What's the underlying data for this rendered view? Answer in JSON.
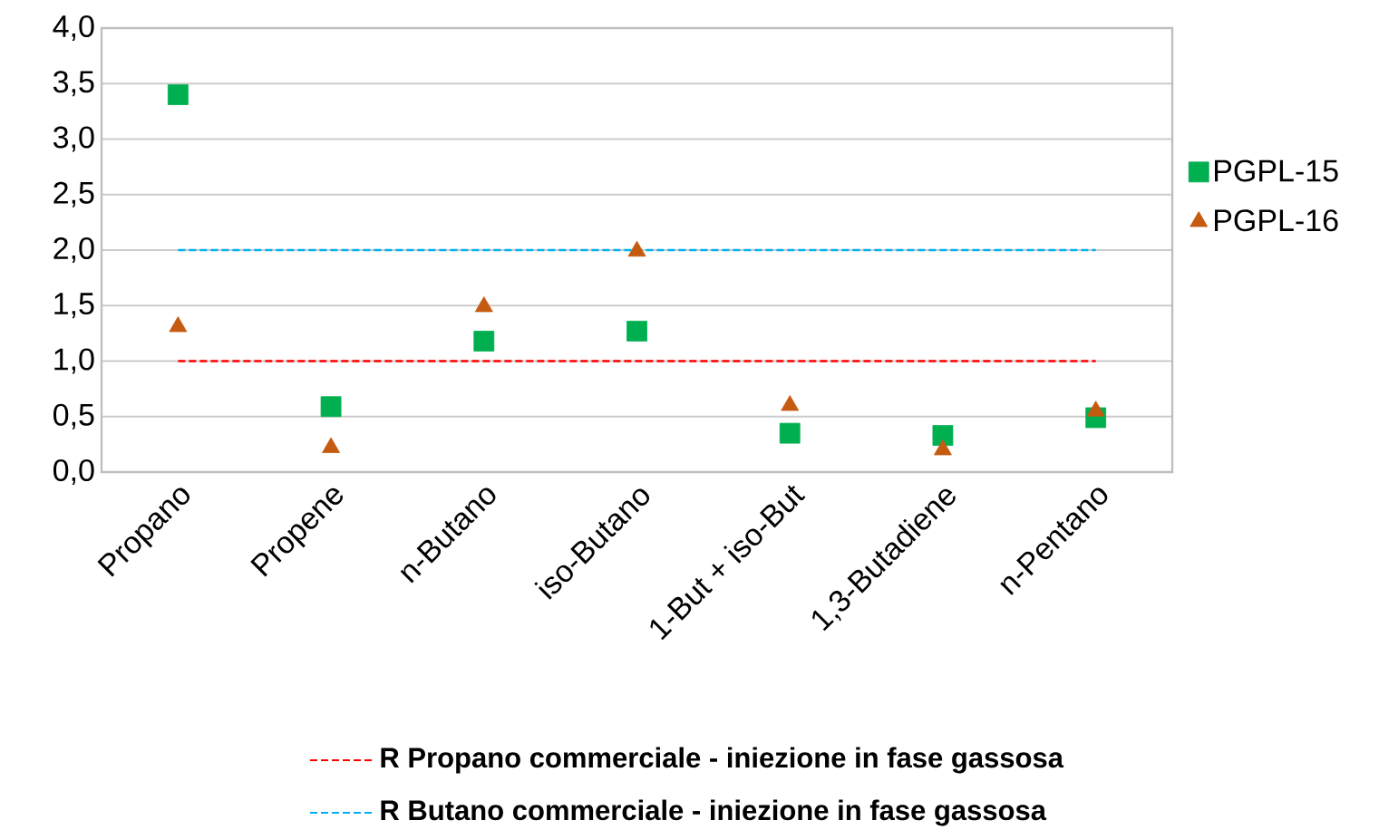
{
  "chart_data": {
    "type": "scatter",
    "categories": [
      "Propano",
      "Propene",
      "n-Butano",
      "iso-Butano",
      "1-But + iso-But",
      "1,3-Butadiene",
      "n-Pentano"
    ],
    "series": [
      {
        "name": "PGPL-15",
        "color": "#00b050",
        "marker": "square",
        "values": [
          3.4,
          0.59,
          1.18,
          1.27,
          0.35,
          0.33,
          0.49
        ]
      },
      {
        "name": "PGPL-16",
        "color": "#c55a11",
        "marker": "triangle",
        "values": [
          1.31,
          0.22,
          1.49,
          1.99,
          0.6,
          0.2,
          0.55
        ]
      }
    ],
    "ylim": [
      0,
      4
    ],
    "yticks": [
      {
        "value": 0,
        "label": "0,0"
      },
      {
        "value": 0.5,
        "label": "0,5"
      },
      {
        "value": 1,
        "label": "1,0"
      },
      {
        "value": 1.5,
        "label": "1,5"
      },
      {
        "value": 2,
        "label": "2,0"
      },
      {
        "value": 2.5,
        "label": "2,5"
      },
      {
        "value": 3,
        "label": "3,0"
      },
      {
        "value": 3.5,
        "label": "3,5"
      },
      {
        "value": 4,
        "label": "4,0"
      }
    ],
    "grid": "y",
    "legend": "right",
    "ref_lines": [
      {
        "axis": "y",
        "value": 1,
        "label": "R Propano commerciale  - iniezione in  fase gassosa",
        "color": "#ff0000",
        "line_style": "dashed"
      },
      {
        "axis": "y",
        "value": 2,
        "label": "R Butano commerciale  - iniezione in  fase gassosa",
        "color": "#00b0f0",
        "line_style": "dashed"
      }
    ]
  }
}
